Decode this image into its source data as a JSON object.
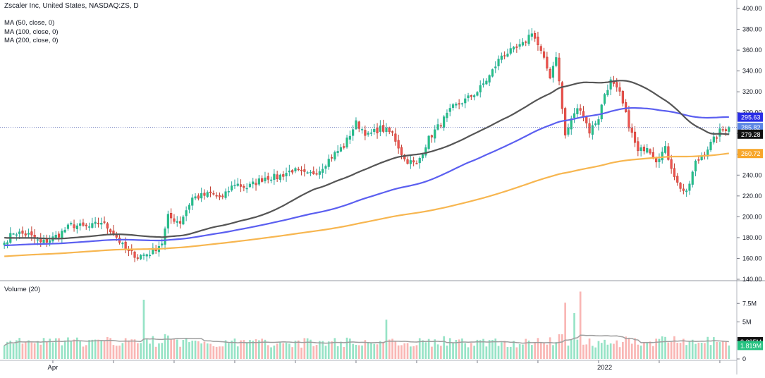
{
  "header": {
    "title": "Zscaler Inc, United States, NASDAQ:ZS, D",
    "indicators": [
      "MA (50, close, 0)",
      "MA (100, close, 0)",
      "MA (200, close, 0)"
    ],
    "volume_label": "Volume (20)"
  },
  "colors": {
    "up": "#26a69a",
    "up_fill": "#26c281",
    "down": "#ef5350",
    "ma50": "#555555",
    "ma100": "#5b5ff0",
    "ma200": "#f7b650",
    "vol_up": "#96e3c6",
    "vol_down": "#f9b6b4",
    "vol_ma": "#9e9e9e"
  },
  "chart_data": {
    "type": "candlestick",
    "title": "Zscaler Inc, United States, NASDAQ:ZS, D",
    "price_axis": {
      "ylim": [
        140,
        400
      ],
      "ticks": [
        "140.00",
        "160.00",
        "180.00",
        "200.00",
        "220.00",
        "240.00",
        "260.00",
        "280.00",
        "300.00",
        "320.00",
        "340.00",
        "360.00",
        "380.00",
        "400.00"
      ],
      "tick_values": [
        140,
        160,
        180,
        200,
        220,
        240,
        260,
        280,
        300,
        320,
        340,
        360,
        380,
        400
      ]
    },
    "volume_axis": {
      "ylim": [
        0,
        10000000
      ],
      "ticks": [
        "0",
        "2.5M",
        "5M",
        "7.5M"
      ],
      "tick_values": [
        0,
        2500000,
        5000000,
        7500000
      ]
    },
    "time_axis": {
      "labels": [
        "Apr",
        "2022"
      ],
      "label_index": [
        16,
        198
      ]
    },
    "current_price": 285.82,
    "price_labels": [
      {
        "name": "ma100",
        "value": 295.63,
        "text": "295.63"
      },
      {
        "name": "close",
        "value": 285.82,
        "text": "285.82"
      },
      {
        "name": "ma50",
        "value": 279.28,
        "text": "279.28"
      },
      {
        "name": "ma200",
        "value": 260.72,
        "text": "260.72"
      }
    ],
    "volume_labels": [
      {
        "name": "volume-ma",
        "value": 2335000,
        "text": "2.335M"
      },
      {
        "name": "volume",
        "value": 1819000,
        "text": "1.819M"
      }
    ],
    "close_anchors": [
      [
        0,
        175
      ],
      [
        3,
        185
      ],
      [
        8,
        183
      ],
      [
        12,
        175
      ],
      [
        15,
        178
      ],
      [
        18,
        183
      ],
      [
        22,
        192
      ],
      [
        28,
        190
      ],
      [
        32,
        195
      ],
      [
        36,
        185
      ],
      [
        40,
        168
      ],
      [
        44,
        162
      ],
      [
        48,
        165
      ],
      [
        52,
        175
      ],
      [
        54,
        200
      ],
      [
        58,
        195
      ],
      [
        62,
        218
      ],
      [
        68,
        222
      ],
      [
        72,
        218
      ],
      [
        76,
        232
      ],
      [
        80,
        228
      ],
      [
        86,
        238
      ],
      [
        90,
        238
      ],
      [
        95,
        245
      ],
      [
        100,
        240
      ],
      [
        104,
        245
      ],
      [
        108,
        258
      ],
      [
        112,
        268
      ],
      [
        116,
        290
      ],
      [
        120,
        278
      ],
      [
        124,
        285
      ],
      [
        128,
        280
      ],
      [
        132,
        255
      ],
      [
        136,
        250
      ],
      [
        140,
        275
      ],
      [
        144,
        290
      ],
      [
        148,
        305
      ],
      [
        152,
        312
      ],
      [
        156,
        320
      ],
      [
        160,
        335
      ],
      [
        164,
        355
      ],
      [
        168,
        360
      ],
      [
        171,
        365
      ],
      [
        174,
        378
      ],
      [
        177,
        358
      ],
      [
        180,
        335
      ],
      [
        182,
        355
      ],
      [
        185,
        278
      ],
      [
        188,
        300
      ],
      [
        190,
        305
      ],
      [
        193,
        282
      ],
      [
        196,
        295
      ],
      [
        198,
        318
      ],
      [
        200,
        330
      ],
      [
        203,
        318
      ],
      [
        206,
        288
      ],
      [
        209,
        262
      ],
      [
        212,
        268
      ],
      [
        215,
        255
      ],
      [
        218,
        265
      ],
      [
        222,
        232
      ],
      [
        225,
        222
      ],
      [
        228,
        252
      ],
      [
        231,
        262
      ],
      [
        234,
        274
      ],
      [
        236,
        282
      ],
      [
        239,
        286
      ]
    ]
  }
}
